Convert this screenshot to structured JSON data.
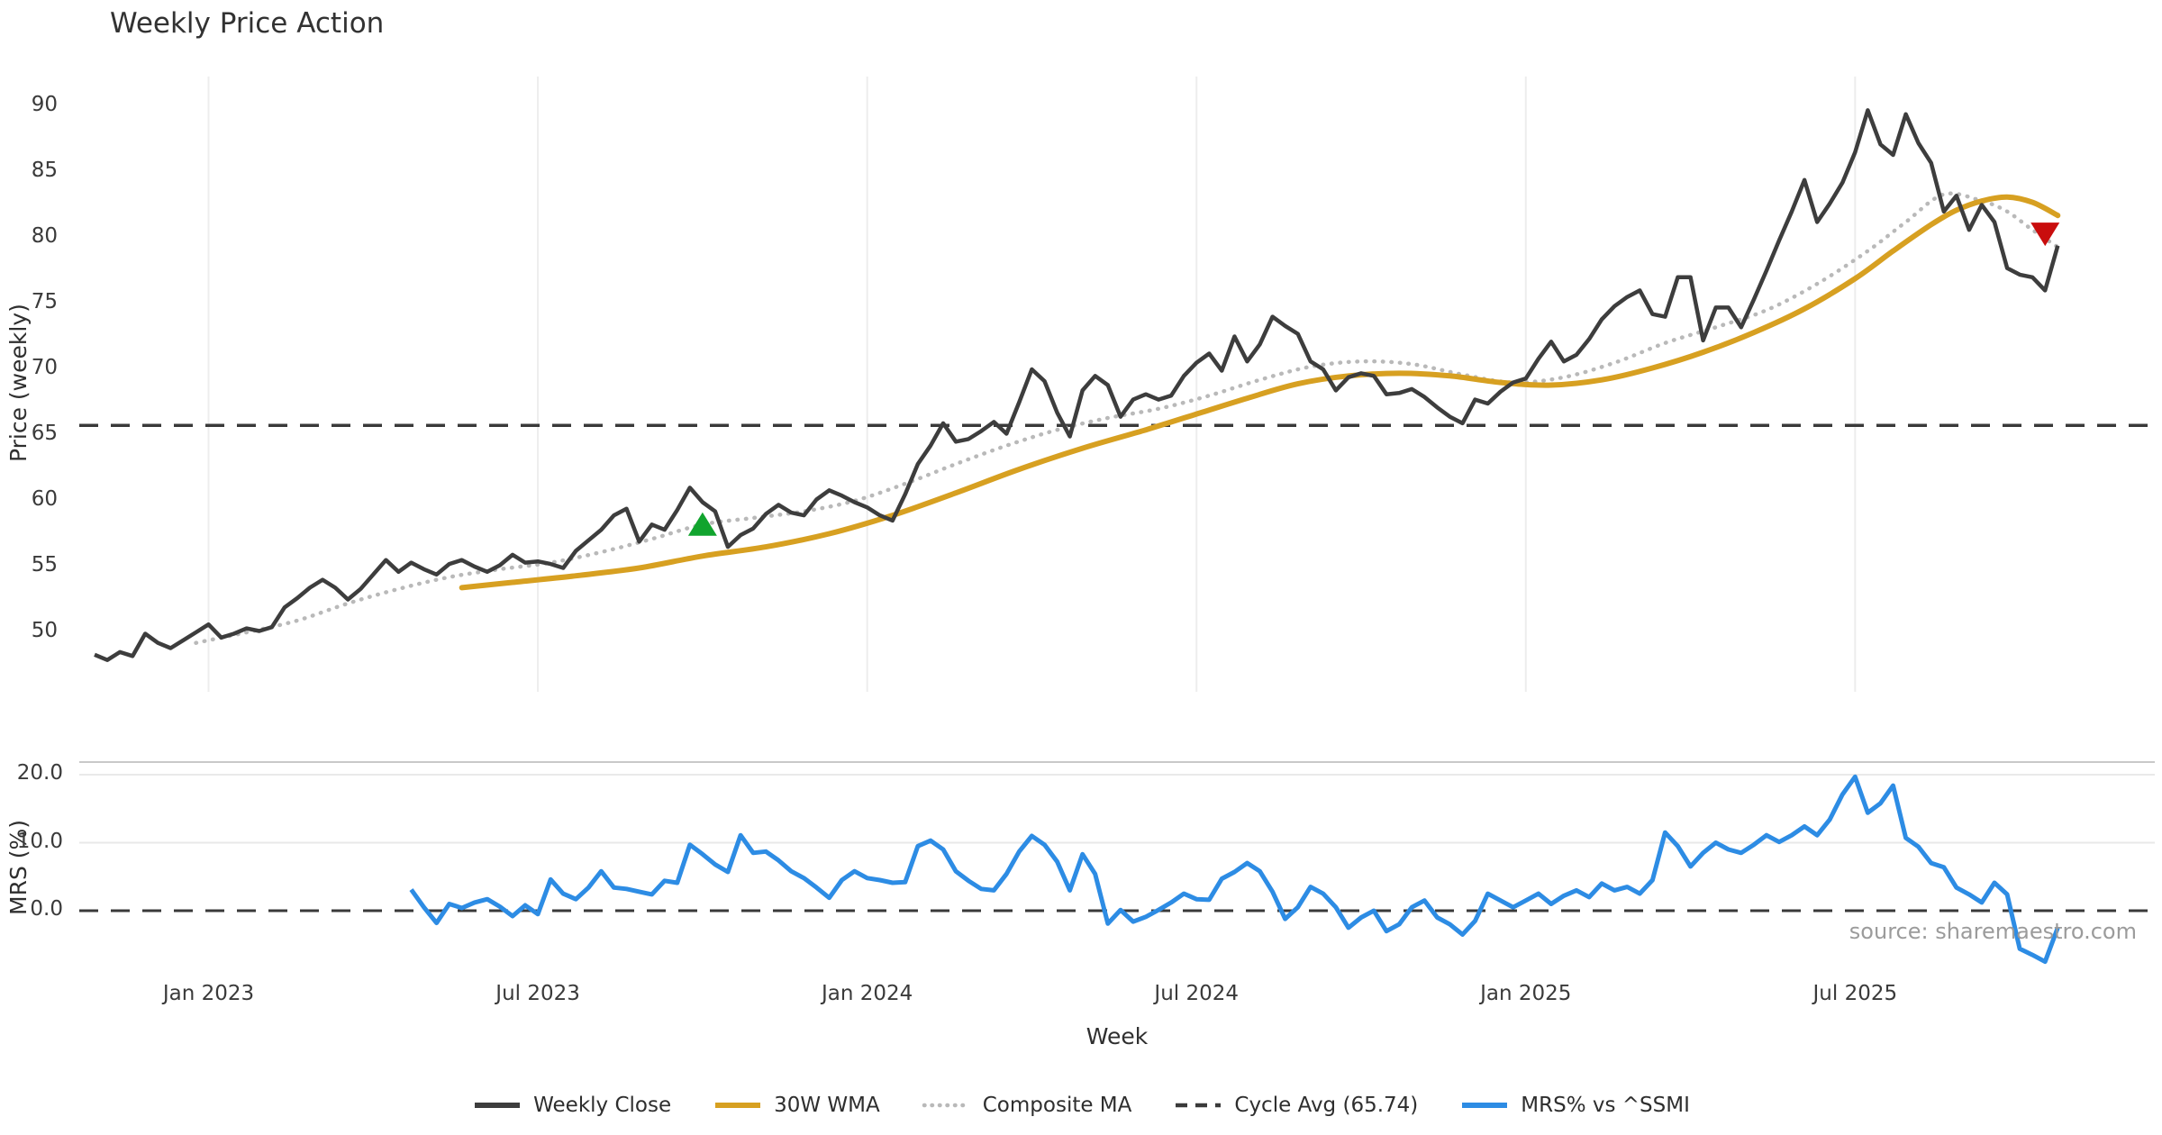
{
  "title": "Weekly Price Action",
  "source_note": "source: sharemaestro.com",
  "colors": {
    "weekly_close": "#3d3d3d",
    "wma_30w": "#d7a021",
    "composite_ma": "#b9b9b9",
    "cycle_avg": "#3a3a3a",
    "mrs": "#2d8ce4",
    "buy_marker": "#11a42e",
    "sell_marker": "#c90d0d",
    "grid_vertical": "#ededed",
    "grid_horizontal": "#e9e9e9",
    "panel_spine": "#c9c9c9"
  },
  "legend": {
    "items": [
      {
        "label": "Weekly Close",
        "color": "#3d3d3d",
        "dash": "solid"
      },
      {
        "label": "30W WMA",
        "color": "#d7a021",
        "dash": "solid"
      },
      {
        "label": "Composite MA",
        "color": "#b9b9b9",
        "dash": "dotted"
      },
      {
        "label": "Cycle Avg (65.74)",
        "color": "#3a3a3a",
        "dash": "dashed"
      },
      {
        "label": "MRS% vs ^SSMI",
        "color": "#2d8ce4",
        "dash": "solid"
      }
    ]
  },
  "chart_data": {
    "type": "line",
    "x_axis": {
      "label": "Week",
      "tick_labels": [
        "Jan 2023",
        "Jul 2023",
        "Jan 2024",
        "Jul 2024",
        "Jan 2025",
        "Jul 2025"
      ],
      "tick_weeks": [
        9,
        35,
        61,
        87,
        113,
        139
      ]
    },
    "price_panel": {
      "ylabel": "Price (weekly)",
      "yticks": [
        50,
        55,
        60,
        65,
        70,
        75,
        80,
        85,
        90
      ],
      "ylim": [
        46.0,
        92.3
      ],
      "cycle_avg": 65.74,
      "weekly_close": {
        "name": "Weekly Close",
        "start_week": 0,
        "values": [
          48.3,
          47.9,
          48.5,
          48.2,
          49.9,
          49.2,
          48.8,
          49.4,
          50.0,
          50.6,
          49.6,
          49.9,
          50.3,
          50.1,
          50.4,
          51.9,
          52.6,
          53.4,
          54.0,
          53.4,
          52.5,
          53.3,
          54.4,
          55.5,
          54.6,
          55.3,
          54.8,
          54.4,
          55.2,
          55.5,
          55.0,
          54.6,
          55.1,
          55.9,
          55.3,
          55.4,
          55.2,
          54.9,
          56.2,
          57.0,
          57.8,
          58.9,
          59.4,
          56.9,
          58.2,
          57.8,
          59.3,
          61.0,
          59.9,
          59.2,
          56.5,
          57.4,
          57.9,
          59.0,
          59.7,
          59.1,
          58.9,
          60.1,
          60.8,
          60.4,
          59.9,
          59.5,
          58.9,
          58.5,
          60.5,
          62.8,
          64.2,
          65.9,
          64.5,
          64.7,
          65.3,
          66.0,
          65.1,
          67.5,
          70.0,
          69.1,
          66.7,
          64.9,
          68.4,
          69.5,
          68.8,
          66.4,
          67.7,
          68.1,
          67.7,
          68.0,
          69.5,
          70.5,
          71.2,
          69.9,
          72.5,
          70.6,
          71.9,
          74.0,
          73.3,
          72.7,
          70.6,
          70.0,
          68.4,
          69.4,
          69.7,
          69.5,
          68.1,
          68.2,
          68.5,
          67.9,
          67.1,
          66.4,
          65.9,
          67.7,
          67.4,
          68.3,
          69.0,
          69.3,
          70.8,
          72.1,
          70.6,
          71.1,
          72.3,
          73.8,
          74.8,
          75.5,
          76.0,
          74.2,
          74.0,
          77.0,
          77.0,
          72.2,
          74.7,
          74.7,
          73.2,
          75.3,
          77.5,
          79.8,
          82.0,
          84.4,
          81.2,
          82.6,
          84.2,
          86.5,
          89.7,
          87.1,
          86.3,
          89.4,
          87.2,
          85.7,
          82.0,
          83.2,
          80.6,
          82.5,
          81.2,
          77.7,
          77.2,
          77.0,
          76.0,
          79.4
        ]
      },
      "wma_30w": {
        "name": "30W WMA",
        "anchors": [
          [
            29,
            53.4
          ],
          [
            33,
            53.8
          ],
          [
            38,
            54.3
          ],
          [
            43,
            54.9
          ],
          [
            48,
            55.8
          ],
          [
            53,
            56.5
          ],
          [
            58,
            57.5
          ],
          [
            63,
            58.9
          ],
          [
            68,
            60.6
          ],
          [
            73,
            62.4
          ],
          [
            78,
            64.0
          ],
          [
            83,
            65.4
          ],
          [
            87,
            66.6
          ],
          [
            91,
            67.8
          ],
          [
            95,
            68.9
          ],
          [
            99,
            69.5
          ],
          [
            103,
            69.7
          ],
          [
            107,
            69.5
          ],
          [
            111,
            69.0
          ],
          [
            115,
            68.8
          ],
          [
            119,
            69.2
          ],
          [
            123,
            70.1
          ],
          [
            127,
            71.3
          ],
          [
            131,
            72.8
          ],
          [
            135,
            74.6
          ],
          [
            139,
            76.9
          ],
          [
            142,
            79.0
          ],
          [
            145,
            81.0
          ],
          [
            147,
            82.1
          ],
          [
            149,
            82.8
          ],
          [
            151,
            83.1
          ],
          [
            153,
            82.7
          ],
          [
            155,
            81.7
          ]
        ]
      },
      "composite_ma": {
        "name": "Composite MA",
        "anchors": [
          [
            8,
            49.2
          ],
          [
            12,
            50.0
          ],
          [
            16,
            50.9
          ],
          [
            20,
            52.2
          ],
          [
            24,
            53.3
          ],
          [
            28,
            54.2
          ],
          [
            32,
            54.8
          ],
          [
            36,
            55.3
          ],
          [
            40,
            56.1
          ],
          [
            44,
            57.1
          ],
          [
            48,
            58.2
          ],
          [
            52,
            58.7
          ],
          [
            56,
            59.2
          ],
          [
            60,
            60.0
          ],
          [
            64,
            61.3
          ],
          [
            68,
            62.8
          ],
          [
            72,
            64.2
          ],
          [
            76,
            65.4
          ],
          [
            80,
            66.3
          ],
          [
            84,
            67.0
          ],
          [
            88,
            68.0
          ],
          [
            92,
            69.2
          ],
          [
            96,
            70.2
          ],
          [
            100,
            70.6
          ],
          [
            104,
            70.4
          ],
          [
            108,
            69.6
          ],
          [
            112,
            69.0
          ],
          [
            116,
            69.4
          ],
          [
            120,
            70.5
          ],
          [
            124,
            72.0
          ],
          [
            128,
            73.2
          ],
          [
            132,
            74.5
          ],
          [
            136,
            76.5
          ],
          [
            140,
            79.0
          ],
          [
            143,
            81.2
          ],
          [
            146,
            83.3
          ],
          [
            149,
            82.8
          ],
          [
            151,
            82.0
          ],
          [
            153,
            80.6
          ],
          [
            155,
            79.3
          ]
        ]
      },
      "signals": [
        {
          "type": "buy",
          "week": 48,
          "price": 58.1
        },
        {
          "type": "sell",
          "week": 154,
          "price": 80.4
        }
      ]
    },
    "mrs_panel": {
      "ylabel": "MRS (%)",
      "ytick_labels": [
        "20.0",
        "10.0",
        "0.0"
      ],
      "ytick_values": [
        20,
        10,
        0
      ],
      "ylim": [
        -9.8,
        21.8
      ],
      "zero_line": 0.0,
      "mrs_pct": {
        "name": "MRS% vs ^SSMI",
        "start_week": 25,
        "values": [
          3.1,
          0.5,
          -1.8,
          1.0,
          0.4,
          1.2,
          1.7,
          0.6,
          -0.8,
          0.8,
          -0.5,
          4.6,
          2.5,
          1.7,
          3.4,
          5.8,
          3.4,
          3.2,
          2.8,
          2.4,
          4.4,
          4.1,
          9.7,
          8.3,
          6.8,
          5.7,
          11.1,
          8.5,
          8.7,
          7.4,
          5.8,
          4.8,
          3.4,
          1.9,
          4.5,
          5.8,
          4.8,
          4.5,
          4.1,
          4.2,
          9.5,
          10.3,
          9.0,
          5.8,
          4.4,
          3.2,
          3.0,
          5.4,
          8.7,
          11.0,
          9.7,
          7.2,
          3.0,
          8.3,
          5.4,
          -1.9,
          0.1,
          -1.6,
          -0.9,
          0.1,
          1.2,
          2.5,
          1.7,
          1.6,
          4.7,
          5.7,
          7.0,
          5.8,
          2.8,
          -1.2,
          0.5,
          3.5,
          2.5,
          0.5,
          -2.5,
          -1.0,
          0.0,
          -3.0,
          -2.0,
          0.5,
          1.5,
          -1.0,
          -2.0,
          -3.5,
          -1.5,
          2.5,
          1.5,
          0.5,
          1.5,
          2.5,
          1.0,
          2.2,
          3.0,
          2.0,
          4.0,
          3.0,
          3.5,
          2.5,
          4.5,
          11.5,
          9.5,
          6.5,
          8.5,
          10.0,
          9.0,
          8.5,
          9.7,
          11.1,
          10.1,
          11.1,
          12.4,
          11.1,
          13.4,
          17.1,
          19.7,
          14.4,
          15.8,
          18.4,
          10.7,
          9.4,
          7.0,
          6.4,
          3.4,
          2.4,
          1.2,
          4.1,
          2.4,
          -5.6,
          -6.5,
          -7.5,
          -2.5
        ]
      }
    }
  }
}
